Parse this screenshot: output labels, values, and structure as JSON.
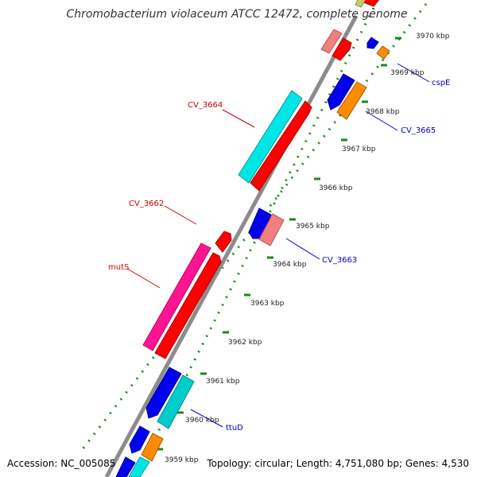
{
  "title": "Chromobacterium violaceum ATCC 12472, complete genome",
  "footer": {
    "accession": "Accession: NC_005085",
    "summary": "Topology: circular; Length: 4,751,080 bp; Genes: 4,530"
  },
  "ticks": [
    "3970 kbp",
    "3969 kbp",
    "3968 kbp",
    "3967 kbp",
    "3966 kbp",
    "3965 kbp",
    "3964 kbp",
    "3963 kbp",
    "3962 kbp",
    "3961 kbp",
    "3960 kbp",
    "3959 kbp"
  ],
  "gene_labels": [
    {
      "text": "cspE",
      "color": "#0000cc"
    },
    {
      "text": "CV_3665",
      "color": "#0000cc"
    },
    {
      "text": "CV_3664",
      "color": "#cc0000"
    },
    {
      "text": "CV_3662",
      "color": "#cc0000"
    },
    {
      "text": "CV_3663",
      "color": "#0000cc"
    },
    {
      "text": "mutS",
      "color": "#cc0000"
    },
    {
      "text": "ttuD",
      "color": "#0000cc"
    }
  ],
  "colors": {
    "backbone": "#8c8c8c",
    "dots": "#1a8a1a",
    "red": "#ff0000",
    "pink": "#f08080",
    "cyan": "#00e6e6",
    "magenta": "#ff1493",
    "blue": "#0000ee",
    "orange": "#ff8c00",
    "teal": "#00cccc"
  }
}
